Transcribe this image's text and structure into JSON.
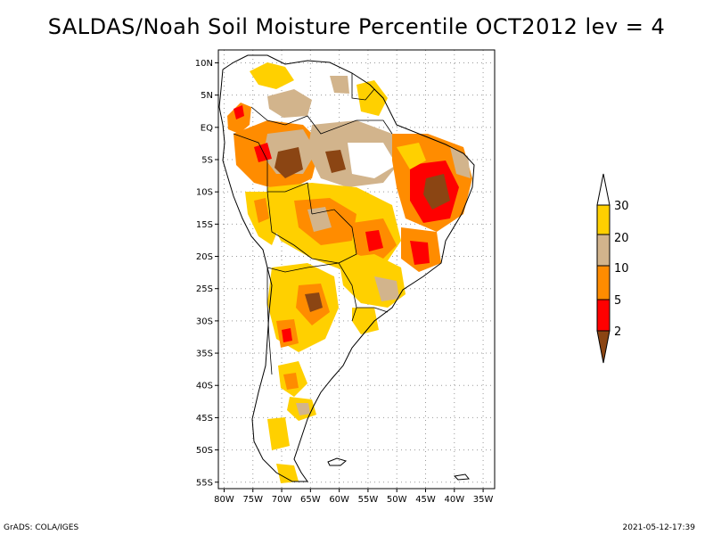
{
  "title": "SALDAS/Noah Soil Moisture Percentile OCT2012 lev = 4",
  "map": {
    "lat_ticks": [
      "10N",
      "5N",
      "EQ",
      "5S",
      "10S",
      "15S",
      "20S",
      "25S",
      "30S",
      "35S",
      "40S",
      "45S",
      "50S",
      "55S"
    ],
    "lon_ticks": [
      "80W",
      "75W",
      "70W",
      "65W",
      "60W",
      "55W",
      "50W",
      "45W",
      "40W",
      "35W"
    ],
    "lat_range": [
      -56,
      12
    ],
    "lon_range": [
      -81,
      -33
    ]
  },
  "colorbar": {
    "labels": [
      "30",
      "20",
      "10",
      "5",
      "2"
    ],
    "colors": [
      "#ffffff",
      "#ffd000",
      "#d2b48c",
      "#ff8c00",
      "#ff0000",
      "#8b4513"
    ]
  },
  "footer": {
    "left": "GrADS: COLA/IGES",
    "right": "2021-05-12-17:39"
  }
}
